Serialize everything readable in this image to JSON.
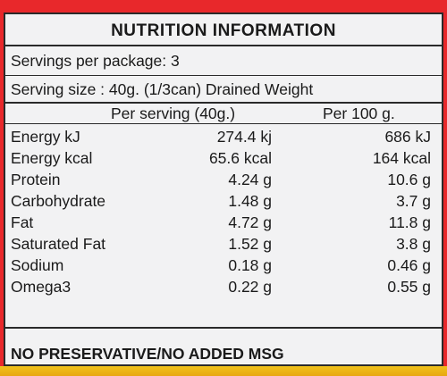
{
  "title": "NUTRITION INFORMATION",
  "servings": "Servings per package: 3",
  "serving_size": "Serving size : 40g. (1/3can) Drained Weight",
  "col_per_serving": "Per serving (40g.)",
  "col_per_100g": "Per 100 g.",
  "rows": [
    {
      "name": "Energy kJ",
      "per_serving": "274.4 kj",
      "per_100g": "686 kJ"
    },
    {
      "name": "Energy kcal",
      "per_serving": "65.6 kcal",
      "per_100g": "164 kcal"
    },
    {
      "name": "Protein",
      "per_serving": "4.24 g",
      "per_100g": "10.6 g"
    },
    {
      "name": "Carbohydrate",
      "per_serving": "1.48 g",
      "per_100g": "3.7 g"
    },
    {
      "name": "Fat",
      "per_serving": "4.72 g",
      "per_100g": "11.8 g"
    },
    {
      "name": "Saturated Fat",
      "per_serving": "1.52 g",
      "per_100g": "3.8 g"
    },
    {
      "name": "Sodium",
      "per_serving": "0.18 g",
      "per_100g": "0.46 g"
    },
    {
      "name": "Omega3",
      "per_serving": "0.22 g",
      "per_100g": "0.55 g"
    }
  ],
  "footer": "NO PRESERVATIVE/NO ADDED MSG"
}
